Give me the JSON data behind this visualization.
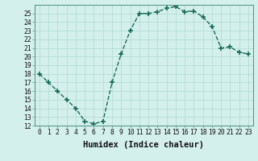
{
  "x": [
    0,
    1,
    2,
    3,
    4,
    5,
    6,
    7,
    8,
    9,
    10,
    11,
    12,
    13,
    14,
    15,
    16,
    17,
    18,
    19,
    20,
    21,
    22,
    23
  ],
  "y": [
    18,
    17,
    16,
    15,
    14,
    12.5,
    12.2,
    12.5,
    17,
    20.3,
    23,
    25,
    25,
    25.2,
    25.6,
    25.8,
    25.2,
    25.3,
    24.6,
    23.5,
    21,
    21.1,
    20.5,
    20.3
  ],
  "line_color": "#1a6b5a",
  "marker": "+",
  "marker_size": 4,
  "marker_lw": 1.2,
  "line_width": 1.0,
  "bg_color": "#d4f0ec",
  "grid_color": "#b0d8d0",
  "xlabel": "Humidex (Indice chaleur)",
  "xlim": [
    -0.5,
    23.5
  ],
  "ylim": [
    12,
    26
  ],
  "yticks": [
    12,
    13,
    14,
    15,
    16,
    17,
    18,
    19,
    20,
    21,
    22,
    23,
    24,
    25
  ],
  "xticks": [
    0,
    1,
    2,
    3,
    4,
    5,
    6,
    7,
    8,
    9,
    10,
    11,
    12,
    13,
    14,
    15,
    16,
    17,
    18,
    19,
    20,
    21,
    22,
    23
  ],
  "xlabel_fontsize": 7.5,
  "tick_fontsize": 5.8
}
